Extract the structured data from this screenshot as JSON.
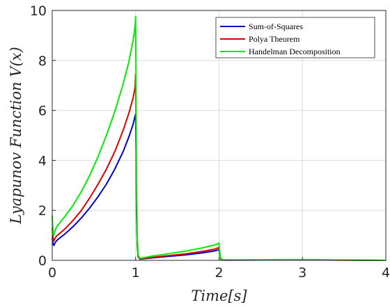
{
  "chart_data": {
    "type": "line",
    "xlabel": "Time[s]",
    "ylabel": "Lyapunov  Function  V(x)",
    "xlim": [
      0,
      4
    ],
    "ylim": [
      0,
      10
    ],
    "xticks": [
      "0",
      "1",
      "2",
      "3",
      "4"
    ],
    "yticks": [
      "0",
      "2",
      "4",
      "6",
      "8",
      "10"
    ],
    "grid": true,
    "legend_position": "top-right",
    "series": [
      {
        "name": "Sum-of-Squares",
        "color": "#0000cc",
        "points": [
          [
            0,
            0.9
          ],
          [
            0.01,
            0.63
          ],
          [
            0.02,
            0.6
          ],
          [
            0.03,
            0.68
          ],
          [
            0.05,
            0.78
          ],
          [
            0.08,
            0.87
          ],
          [
            0.15,
            1.05
          ],
          [
            0.25,
            1.35
          ],
          [
            0.35,
            1.7
          ],
          [
            0.45,
            2.1
          ],
          [
            0.55,
            2.55
          ],
          [
            0.65,
            3.05
          ],
          [
            0.75,
            3.65
          ],
          [
            0.85,
            4.35
          ],
          [
            0.92,
            4.95
          ],
          [
            0.97,
            5.45
          ],
          [
            0.995,
            5.8
          ],
          [
            1.0,
            5.85
          ],
          [
            1.005,
            4.5
          ],
          [
            1.01,
            2.0
          ],
          [
            1.02,
            0.6
          ],
          [
            1.03,
            0.15
          ],
          [
            1.05,
            0.05
          ],
          [
            1.2,
            0.1
          ],
          [
            1.4,
            0.16
          ],
          [
            1.6,
            0.22
          ],
          [
            1.8,
            0.3
          ],
          [
            1.95,
            0.38
          ],
          [
            1.99,
            0.42
          ],
          [
            2.0,
            0.45
          ],
          [
            2.01,
            0.2
          ],
          [
            2.02,
            0.05
          ],
          [
            2.05,
            0.01
          ],
          [
            3.0,
            0.02
          ],
          [
            4.0,
            0.0
          ]
        ]
      },
      {
        "name": "Polya Theorem",
        "color": "#dd0000",
        "points": [
          [
            0,
            1.3
          ],
          [
            0.01,
            0.85
          ],
          [
            0.02,
            0.78
          ],
          [
            0.03,
            0.86
          ],
          [
            0.05,
            0.97
          ],
          [
            0.08,
            1.05
          ],
          [
            0.15,
            1.25
          ],
          [
            0.25,
            1.6
          ],
          [
            0.35,
            2.0
          ],
          [
            0.45,
            2.5
          ],
          [
            0.55,
            3.05
          ],
          [
            0.65,
            3.65
          ],
          [
            0.75,
            4.35
          ],
          [
            0.85,
            5.2
          ],
          [
            0.92,
            5.9
          ],
          [
            0.97,
            6.5
          ],
          [
            0.995,
            6.95
          ],
          [
            1.0,
            7.45
          ],
          [
            1.005,
            5.5
          ],
          [
            1.01,
            2.5
          ],
          [
            1.02,
            0.7
          ],
          [
            1.03,
            0.18
          ],
          [
            1.05,
            0.06
          ],
          [
            1.2,
            0.12
          ],
          [
            1.4,
            0.19
          ],
          [
            1.6,
            0.26
          ],
          [
            1.8,
            0.36
          ],
          [
            1.95,
            0.45
          ],
          [
            1.99,
            0.5
          ],
          [
            2.0,
            0.52
          ],
          [
            2.01,
            0.25
          ],
          [
            2.02,
            0.06
          ],
          [
            2.05,
            0.01
          ],
          [
            3.0,
            0.02
          ],
          [
            4.0,
            0.0
          ]
        ]
      },
      {
        "name": "Handelman Decomposition",
        "color": "#00ee00",
        "points": [
          [
            0,
            1.8
          ],
          [
            0.01,
            1.05
          ],
          [
            0.02,
            1.0
          ],
          [
            0.03,
            1.15
          ],
          [
            0.05,
            1.33
          ],
          [
            0.08,
            1.45
          ],
          [
            0.15,
            1.75
          ],
          [
            0.25,
            2.2
          ],
          [
            0.35,
            2.75
          ],
          [
            0.45,
            3.4
          ],
          [
            0.55,
            4.15
          ],
          [
            0.65,
            5.0
          ],
          [
            0.75,
            5.95
          ],
          [
            0.85,
            7.05
          ],
          [
            0.92,
            7.95
          ],
          [
            0.97,
            8.8
          ],
          [
            0.995,
            9.4
          ],
          [
            1.0,
            9.75
          ],
          [
            1.005,
            7.0
          ],
          [
            1.01,
            3.2
          ],
          [
            1.02,
            0.9
          ],
          [
            1.03,
            0.22
          ],
          [
            1.05,
            0.08
          ],
          [
            1.2,
            0.17
          ],
          [
            1.4,
            0.27
          ],
          [
            1.6,
            0.37
          ],
          [
            1.8,
            0.5
          ],
          [
            1.95,
            0.62
          ],
          [
            1.99,
            0.67
          ],
          [
            2.0,
            0.7
          ],
          [
            2.01,
            0.3
          ],
          [
            2.02,
            0.08
          ],
          [
            2.05,
            0.02
          ],
          [
            3.0,
            0.03
          ],
          [
            4.0,
            0.0
          ]
        ]
      }
    ]
  }
}
